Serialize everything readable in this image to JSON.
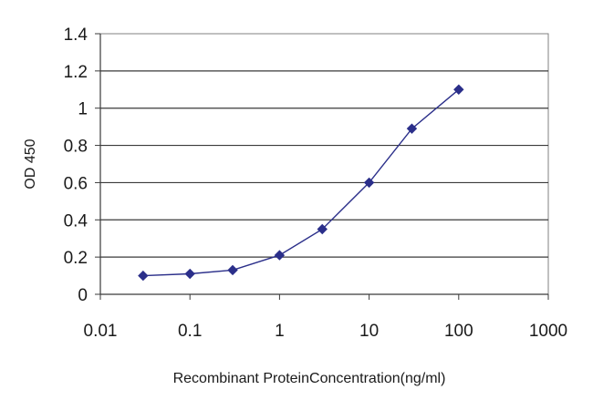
{
  "chart_data": {
    "type": "line",
    "title": "",
    "xlabel": "Recombinant ProteinConcentration(ng/ml)",
    "ylabel": "OD 450",
    "x_scale": "log",
    "xlim": [
      0.01,
      1000
    ],
    "ylim": [
      0,
      1.4
    ],
    "x_ticks": [
      "0.01",
      "0.1",
      "1",
      "10",
      "100",
      "1000"
    ],
    "y_ticks": [
      "0",
      "0.2",
      "0.4",
      "0.6",
      "0.8",
      "1",
      "1.2",
      "1.4"
    ],
    "grid": "horizontal",
    "legend": "none",
    "series": [
      {
        "color": "#2b2f8a",
        "marker": "diamond",
        "x": [
          0.03,
          0.1,
          0.3,
          1,
          3,
          10,
          30,
          100
        ],
        "y": [
          0.1,
          0.11,
          0.13,
          0.21,
          0.35,
          0.6,
          0.89,
          1.1
        ]
      }
    ]
  }
}
